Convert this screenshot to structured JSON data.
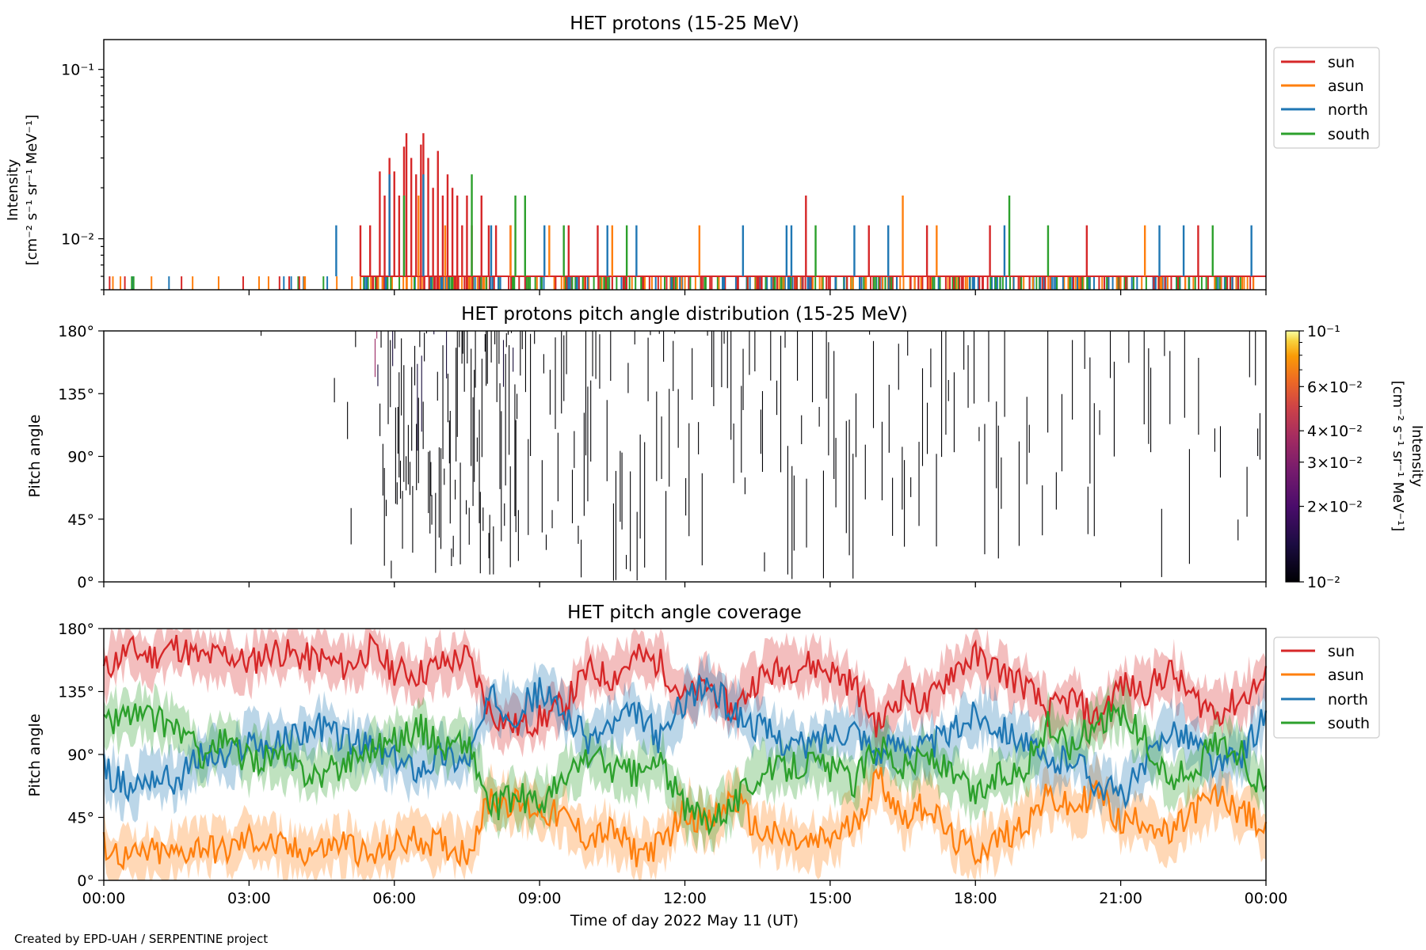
{
  "credit": "Created by EPD-UAH / SERPENTINE project",
  "colors": {
    "sun": "#d62728",
    "asun": "#ff7f0e",
    "north": "#1f77b4",
    "south": "#2ca02c",
    "pad_low": "#160b39",
    "pad_mid": "#9b2964"
  },
  "x_axis": {
    "label": "Time of day 2022 May 11 (UT)",
    "ticks": [
      "00:00",
      "03:00",
      "06:00",
      "09:00",
      "12:00",
      "15:00",
      "18:00",
      "21:00",
      "00:00"
    ],
    "range_hours": [
      0,
      24
    ]
  },
  "chart_data": [
    {
      "type": "line",
      "title": "HET protons (15-25 MeV)",
      "ylabel_line1": "Intensity",
      "ylabel_line2": "[cm⁻² s⁻¹ sr⁻¹ MeV⁻¹]",
      "yscale": "log",
      "ylim": [
        0.005,
        0.15
      ],
      "yticks": [
        "10⁻²",
        "10⁻¹"
      ],
      "legend_position": "upper right, outside",
      "baseline_value": 0.006,
      "series": [
        {
          "name": "sun",
          "spikes": [
            [
              5.3,
              0.012
            ],
            [
              5.5,
              0.012
            ],
            [
              5.7,
              0.025
            ],
            [
              5.8,
              0.018
            ],
            [
              5.9,
              0.03
            ],
            [
              6.0,
              0.025
            ],
            [
              6.1,
              0.018
            ],
            [
              6.2,
              0.035
            ],
            [
              6.25,
              0.042
            ],
            [
              6.35,
              0.03
            ],
            [
              6.45,
              0.024
            ],
            [
              6.55,
              0.036
            ],
            [
              6.6,
              0.042
            ],
            [
              6.7,
              0.03
            ],
            [
              6.8,
              0.02
            ],
            [
              6.9,
              0.033
            ],
            [
              7.0,
              0.018
            ],
            [
              7.1,
              0.024
            ],
            [
              7.2,
              0.02
            ],
            [
              7.3,
              0.018
            ],
            [
              7.4,
              0.012
            ],
            [
              7.5,
              0.018
            ],
            [
              7.6,
              0.012
            ],
            [
              7.8,
              0.018
            ],
            [
              7.95,
              0.012
            ],
            [
              8.1,
              0.012
            ],
            [
              8.4,
              0.012
            ],
            [
              9.6,
              0.012
            ],
            [
              10.2,
              0.012
            ],
            [
              14.5,
              0.018
            ],
            [
              15.8,
              0.012
            ],
            [
              17.0,
              0.012
            ],
            [
              18.3,
              0.012
            ],
            [
              20.3,
              0.012
            ],
            [
              22.6,
              0.012
            ]
          ]
        },
        {
          "name": "asun",
          "spikes": [
            [
              6.5,
              0.018
            ],
            [
              7.05,
              0.012
            ],
            [
              8.4,
              0.012
            ],
            [
              9.2,
              0.012
            ],
            [
              10.5,
              0.012
            ],
            [
              12.3,
              0.012
            ],
            [
              16.5,
              0.018
            ],
            [
              17.2,
              0.012
            ],
            [
              21.5,
              0.012
            ]
          ]
        },
        {
          "name": "north",
          "spikes": [
            [
              4.8,
              0.012
            ],
            [
              5.9,
              0.024
            ],
            [
              6.6,
              0.024
            ],
            [
              8.0,
              0.012
            ],
            [
              9.1,
              0.012
            ],
            [
              10.4,
              0.012
            ],
            [
              11.0,
              0.012
            ],
            [
              13.2,
              0.012
            ],
            [
              14.1,
              0.012
            ],
            [
              14.2,
              0.012
            ],
            [
              15.5,
              0.012
            ],
            [
              16.2,
              0.012
            ],
            [
              18.6,
              0.012
            ],
            [
              21.8,
              0.012
            ],
            [
              22.3,
              0.012
            ],
            [
              23.7,
              0.012
            ]
          ]
        },
        {
          "name": "south",
          "spikes": [
            [
              6.2,
              0.018
            ],
            [
              7.6,
              0.024
            ],
            [
              8.5,
              0.018
            ],
            [
              8.7,
              0.018
            ],
            [
              9.5,
              0.012
            ],
            [
              10.8,
              0.012
            ],
            [
              14.7,
              0.012
            ],
            [
              18.7,
              0.018
            ],
            [
              19.5,
              0.012
            ],
            [
              22.9,
              0.012
            ]
          ]
        }
      ]
    },
    {
      "type": "heatmap",
      "title": "HET protons pitch angle distribution (15-25 MeV)",
      "ylabel": "Pitch angle",
      "ylim": [
        0,
        180
      ],
      "yticks": [
        "0°",
        "45°",
        "90°",
        "135°",
        "180°"
      ],
      "colorbar": {
        "label_line1": "Intensity",
        "label_line2": "[cm⁻² s⁻¹ sr⁻¹ MeV⁻¹]",
        "scale": "log",
        "range": [
          0.01,
          0.1
        ],
        "ticks": [
          "10⁻²",
          "2×10⁻²",
          "3×10⁻²",
          "4×10⁻²",
          "6×10⁻²",
          "10⁻¹"
        ],
        "colormap": "inferno"
      }
    },
    {
      "type": "area",
      "title": "HET pitch angle coverage",
      "ylabel": "Pitch angle",
      "ylim": [
        0,
        180
      ],
      "yticks": [
        "0°",
        "45°",
        "90°",
        "135°",
        "180°"
      ],
      "legend_position": "upper right, outside",
      "series": [
        {
          "name": "sun",
          "values": [
            150,
            165,
            160,
            168,
            158,
            162,
            155,
            165,
            160,
            158,
            152,
            165,
            150,
            148,
            155,
            160,
            120,
            110,
            115,
            125,
            150,
            145,
            160,
            155,
            130,
            140,
            120,
            145,
            150,
            155,
            150,
            140,
            110,
            135,
            125,
            150,
            160,
            150,
            140,
            120,
            130,
            115,
            140,
            135,
            150,
            130,
            120,
            130,
            145
          ]
        },
        {
          "name": "asun",
          "values": [
            25,
            15,
            20,
            18,
            25,
            20,
            30,
            25,
            20,
            22,
            28,
            15,
            25,
            30,
            25,
            20,
            60,
            55,
            50,
            45,
            30,
            35,
            20,
            25,
            50,
            40,
            60,
            35,
            30,
            25,
            30,
            40,
            75,
            45,
            55,
            30,
            20,
            30,
            40,
            60,
            50,
            65,
            40,
            45,
            30,
            50,
            60,
            50,
            35
          ]
        },
        {
          "name": "north",
          "values": [
            80,
            65,
            75,
            70,
            90,
            85,
            100,
            95,
            105,
            110,
            100,
            95,
            85,
            80,
            90,
            85,
            130,
            120,
            135,
            120,
            100,
            110,
            120,
            100,
            130,
            140,
            120,
            110,
            100,
            95,
            105,
            110,
            90,
            100,
            95,
            105,
            120,
            110,
            100,
            80,
            90,
            70,
            60,
            80,
            110,
            100,
            80,
            90,
            120
          ]
        },
        {
          "name": "south",
          "values": [
            110,
            120,
            115,
            110,
            90,
            100,
            85,
            90,
            80,
            75,
            85,
            95,
            100,
            110,
            95,
            100,
            50,
            60,
            55,
            70,
            90,
            80,
            75,
            85,
            50,
            45,
            55,
            75,
            80,
            85,
            80,
            70,
            100,
            80,
            90,
            75,
            60,
            75,
            80,
            110,
            95,
            115,
            120,
            100,
            70,
            80,
            100,
            90,
            60
          ]
        }
      ]
    }
  ]
}
